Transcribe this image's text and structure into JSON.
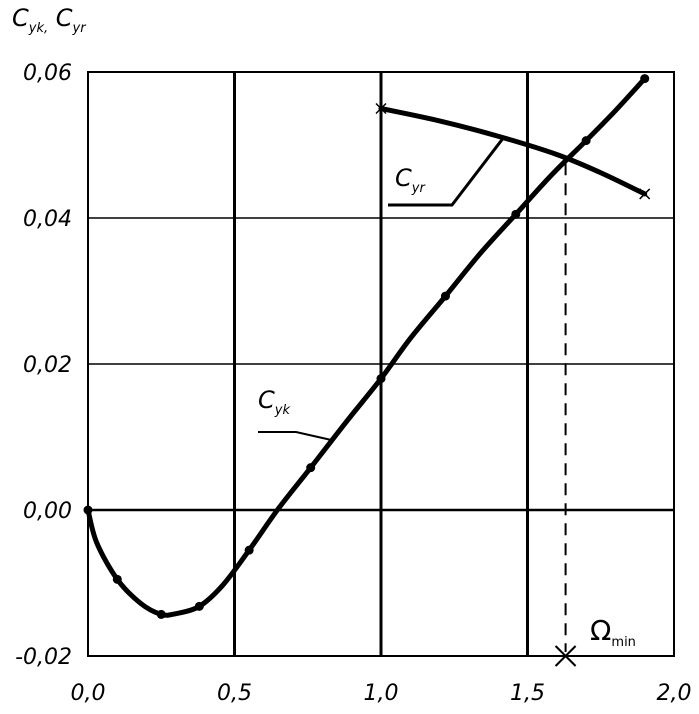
{
  "chart_data": {
    "type": "line",
    "ylabel": {
      "parts": [
        {
          "main": "C",
          "sub": "yk"
        },
        {
          "main": "C",
          "sub": "yr"
        }
      ],
      "separator": ","
    },
    "xlim": [
      0.0,
      2.0
    ],
    "ylim": [
      -0.02,
      0.06
    ],
    "grid": true,
    "x_ticks": [
      0.0,
      0.5,
      1.0,
      1.5,
      2.0
    ],
    "x_tick_labels": [
      "0,0",
      "0,5",
      "1,0",
      "1,5",
      "2,0"
    ],
    "y_ticks": [
      -0.02,
      0.0,
      0.02,
      0.04,
      0.06
    ],
    "y_tick_labels": [
      "-0,02",
      "0,00",
      "0,02",
      "0,04",
      "0,06"
    ],
    "series": [
      {
        "label_main": "C",
        "label_sub": "yk",
        "marker": "dot",
        "x": [
          0.0,
          0.03,
          0.1,
          0.18,
          0.25,
          0.3,
          0.38,
          0.46,
          0.55,
          0.65,
          0.76,
          0.88,
          1.0,
          1.1,
          1.22,
          1.34,
          1.46,
          1.58,
          1.7,
          1.8,
          1.9
        ],
        "y": [
          0.0,
          -0.0045,
          -0.0095,
          -0.0128,
          -0.0143,
          -0.0142,
          -0.0132,
          -0.0103,
          -0.0055,
          0.0002,
          0.0058,
          0.012,
          0.018,
          0.0235,
          0.0293,
          0.0352,
          0.0405,
          0.0458,
          0.0506,
          0.0547,
          0.0591
        ]
      },
      {
        "label_main": "C",
        "label_sub": "yr",
        "marker": "x",
        "x": [
          1.0,
          1.2,
          1.4,
          1.6,
          1.75,
          1.9
        ],
        "y": [
          0.055,
          0.0533,
          0.0512,
          0.0487,
          0.0462,
          0.0433
        ]
      }
    ],
    "annotation": {
      "text_main": "Ω",
      "text_sub": "min",
      "x": 1.63,
      "y_top": 0.0475,
      "y_bottom": -0.02
    }
  }
}
